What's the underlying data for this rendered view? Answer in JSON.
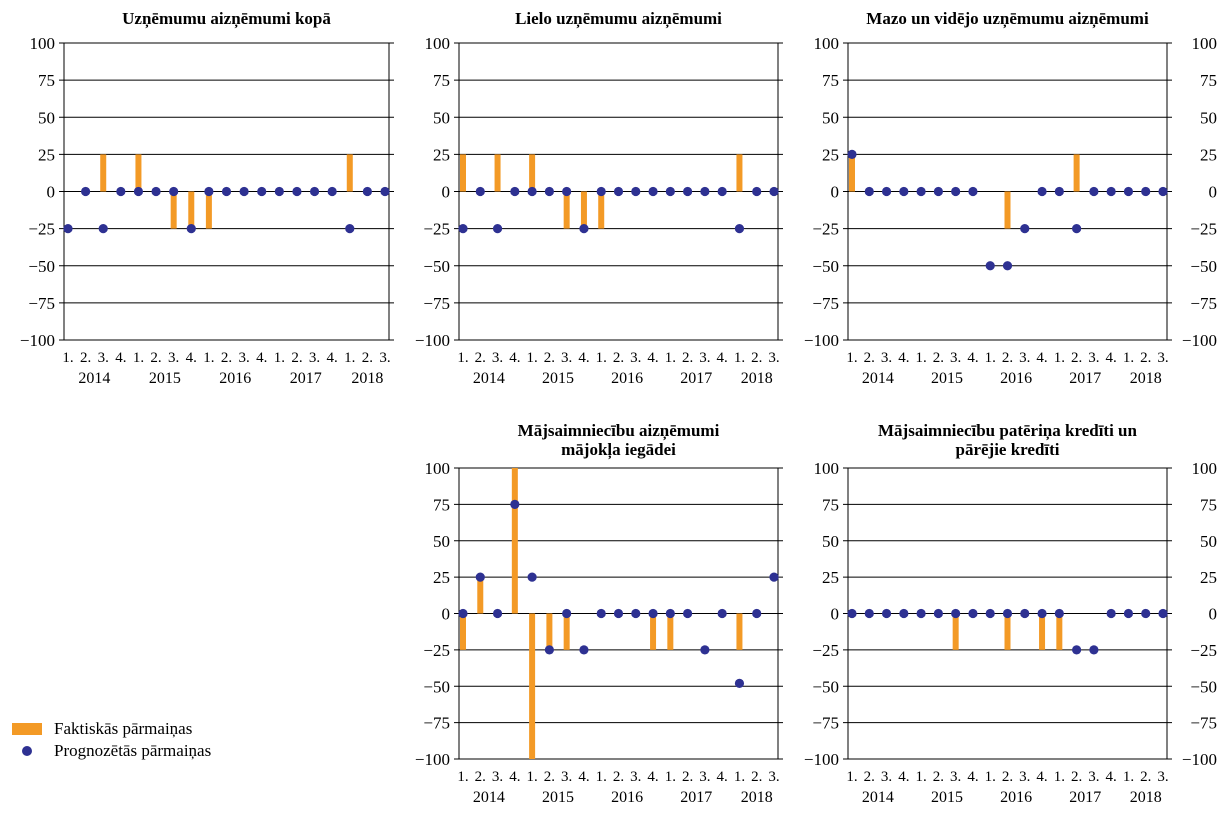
{
  "colors": {
    "bar": "#F39A26",
    "dot": "#2E3192",
    "grid": "#000000"
  },
  "legend": {
    "actual": "Faktiskās pārmaiņas",
    "forecast": "Prognozētās pārmaiņas"
  },
  "quarter_labels": [
    "1.",
    "2.",
    "3.",
    "4.",
    "1.",
    "2.",
    "3.",
    "4.",
    "1.",
    "2.",
    "3.",
    "4.",
    "1.",
    "2.",
    "3.",
    "4.",
    "1.",
    "2.",
    "3."
  ],
  "year_labels": [
    "2014",
    "2015",
    "2016",
    "2017",
    "2018"
  ],
  "chart_data": [
    {
      "type": "bar",
      "title": "Uzņēmumu aizņēmumi kopā",
      "ylim": [
        -100,
        100
      ],
      "yticks": [
        100,
        75,
        50,
        25,
        0,
        -25,
        -50,
        -75,
        -100
      ],
      "ytick_labels": [
        "100",
        "75",
        "50",
        "25",
        "0",
        "−25",
        "−50",
        "−75",
        "−100"
      ],
      "right_axis_labels": false,
      "series": [
        {
          "name": "Faktiskās pārmaiņas",
          "values": [
            0,
            0,
            25,
            0,
            25,
            0,
            -25,
            -25,
            -25,
            0,
            0,
            0,
            0,
            0,
            0,
            0,
            25,
            0,
            0
          ]
        },
        {
          "name": "Prognozētās pārmaiņas",
          "values": [
            -25,
            0,
            -25,
            0,
            0,
            0,
            0,
            -25,
            0,
            0,
            0,
            0,
            0,
            0,
            0,
            0,
            -25,
            0,
            0
          ]
        }
      ]
    },
    {
      "type": "bar",
      "title": "Lielo uzņēmumu aizņēmumi",
      "ylim": [
        -100,
        100
      ],
      "yticks": [
        100,
        75,
        50,
        25,
        0,
        -25,
        -50,
        -75,
        -100
      ],
      "ytick_labels": [
        "100",
        "75",
        "50",
        "25",
        "0",
        "−25",
        "−50",
        "−75",
        "−100"
      ],
      "right_axis_labels": false,
      "series": [
        {
          "name": "Faktiskās pārmaiņas",
          "values": [
            25,
            0,
            25,
            0,
            25,
            0,
            -25,
            -25,
            -25,
            0,
            0,
            0,
            0,
            0,
            0,
            0,
            25,
            0,
            0
          ]
        },
        {
          "name": "Prognozētās pārmaiņas",
          "values": [
            -25,
            0,
            -25,
            0,
            0,
            0,
            0,
            -25,
            0,
            0,
            0,
            0,
            0,
            0,
            0,
            0,
            -25,
            0,
            0
          ]
        }
      ]
    },
    {
      "type": "bar",
      "title": "Mazo un vidējo uzņēmumu aizņēmumi",
      "ylim": [
        -100,
        100
      ],
      "yticks": [
        100,
        75,
        50,
        25,
        0,
        -25,
        -50,
        -75,
        -100
      ],
      "ytick_labels": [
        "100",
        "75",
        "50",
        "25",
        "0",
        "−25",
        "−50",
        "−75",
        "−100"
      ],
      "right_axis_labels": true,
      "series": [
        {
          "name": "Faktiskās pārmaiņas",
          "values": [
            25,
            0,
            0,
            0,
            0,
            0,
            0,
            0,
            0,
            -25,
            0,
            0,
            0,
            25,
            0,
            0,
            0,
            0,
            0
          ]
        },
        {
          "name": "Prognozētās pārmaiņas",
          "values": [
            25,
            0,
            0,
            0,
            0,
            0,
            0,
            0,
            -50,
            -50,
            -25,
            0,
            0,
            -25,
            0,
            0,
            0,
            0,
            0
          ]
        }
      ]
    },
    {
      "type": "bar",
      "title": "Mājsaimniecību aizņēmumi mājokļa iegādei",
      "title_lines": [
        "Mājsaimniecību aizņēmumi",
        "mājokļa iegādei"
      ],
      "ylim": [
        -100,
        100
      ],
      "yticks": [
        100,
        75,
        50,
        25,
        0,
        -25,
        -50,
        -75,
        -100
      ],
      "ytick_labels": [
        "100",
        "75",
        "50",
        "25",
        "0",
        "−25",
        "−50",
        "−75",
        "−100"
      ],
      "right_axis_labels": false,
      "series": [
        {
          "name": "Faktiskās pārmaiņas",
          "values": [
            -25,
            25,
            0,
            100,
            -100,
            -25,
            -25,
            0,
            0,
            0,
            0,
            -25,
            -25,
            0,
            0,
            0,
            -25,
            0,
            0
          ]
        },
        {
          "name": "Prognozētās pārmaiņas",
          "values": [
            0,
            25,
            0,
            75,
            25,
            -25,
            0,
            -25,
            0,
            0,
            0,
            0,
            0,
            0,
            -25,
            0,
            -48,
            0,
            25
          ]
        }
      ]
    },
    {
      "type": "bar",
      "title": "Mājsaimniecību patēriņa kredīti un pārējie kredīti",
      "title_lines": [
        "Mājsaimniecību patēriņa kredīti un",
        "pārējie kredīti"
      ],
      "ylim": [
        -100,
        100
      ],
      "yticks": [
        100,
        75,
        50,
        25,
        0,
        -25,
        -50,
        -75,
        -100
      ],
      "ytick_labels": [
        "100",
        "75",
        "50",
        "25",
        "0",
        "−25",
        "−50",
        "−75",
        "−100"
      ],
      "right_axis_labels": true,
      "series": [
        {
          "name": "Faktiskās pārmaiņas",
          "values": [
            0,
            0,
            0,
            0,
            0,
            0,
            -25,
            0,
            0,
            -25,
            0,
            -25,
            -25,
            0,
            0,
            0,
            0,
            0,
            0
          ]
        },
        {
          "name": "Prognozētās pārmaiņas",
          "values": [
            0,
            0,
            0,
            0,
            0,
            0,
            0,
            0,
            0,
            0,
            0,
            0,
            0,
            -25,
            -25,
            0,
            0,
            0,
            0
          ]
        }
      ]
    }
  ]
}
